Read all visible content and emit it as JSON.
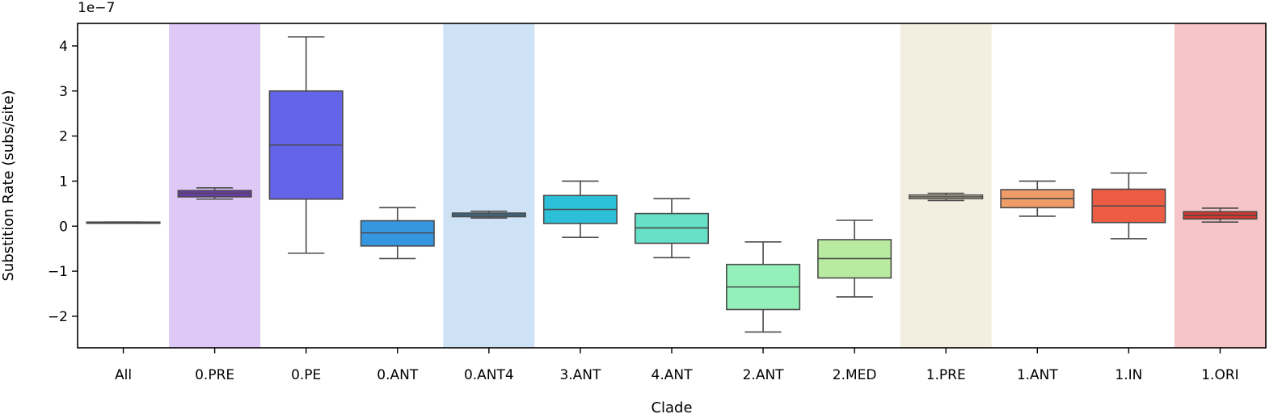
{
  "chart_data": {
    "type": "box",
    "xlabel": "Clade",
    "ylabel": "Substition Rate (subs/site)",
    "offset_text": "1e−7",
    "y_scale_factor": 1e-07,
    "ylim": [
      -2.7,
      4.5
    ],
    "yticks": [
      -2,
      -1,
      0,
      1,
      2,
      3,
      4
    ],
    "ytick_labels": [
      "−2",
      "−1",
      "0",
      "1",
      "2",
      "3",
      "4"
    ],
    "grid": false,
    "legend": "none",
    "categories": [
      "All",
      "0.PRE",
      "0.PE",
      "0.ANT",
      "0.ANT4",
      "3.ANT",
      "4.ANT",
      "2.ANT",
      "2.MED",
      "1.PRE",
      "1.ANT",
      "1.IN",
      "1.ORI"
    ],
    "boxes": [
      {
        "category": "All",
        "whisker_low": 0.07,
        "q1": 0.07,
        "median": 0.08,
        "q3": 0.09,
        "whisker_high": 0.09,
        "color": "#5a2a82"
      },
      {
        "category": "0.PRE",
        "whisker_low": 0.6,
        "q1": 0.65,
        "median": 0.73,
        "q3": 0.79,
        "whisker_high": 0.85,
        "color": "#6a3aab"
      },
      {
        "category": "0.PE",
        "whisker_low": -0.6,
        "q1": 0.6,
        "median": 1.8,
        "q3": 3.0,
        "whisker_high": 4.2,
        "color": "#6464e8"
      },
      {
        "category": "0.ANT",
        "whisker_low": -0.72,
        "q1": -0.44,
        "median": -0.15,
        "q3": 0.12,
        "whisker_high": 0.41,
        "color": "#3796e0"
      },
      {
        "category": "0.ANT4",
        "whisker_low": 0.18,
        "q1": 0.21,
        "median": 0.25,
        "q3": 0.29,
        "whisker_high": 0.33,
        "color": "#2f8fc8"
      },
      {
        "category": "3.ANT",
        "whisker_low": -0.25,
        "q1": 0.06,
        "median": 0.37,
        "q3": 0.68,
        "whisker_high": 1.0,
        "color": "#2bc0d8"
      },
      {
        "category": "4.ANT",
        "whisker_low": -0.7,
        "q1": -0.38,
        "median": -0.04,
        "q3": 0.28,
        "whisker_high": 0.61,
        "color": "#67e0c8"
      },
      {
        "category": "2.ANT",
        "whisker_low": -2.35,
        "q1": -1.85,
        "median": -1.35,
        "q3": -0.85,
        "whisker_high": -0.35,
        "color": "#92f0b8"
      },
      {
        "category": "2.MED",
        "whisker_low": -1.57,
        "q1": -1.15,
        "median": -0.72,
        "q3": -0.3,
        "whisker_high": 0.13,
        "color": "#b8eaa0"
      },
      {
        "category": "1.PRE",
        "whisker_low": 0.57,
        "q1": 0.61,
        "median": 0.65,
        "q3": 0.69,
        "whisker_high": 0.73,
        "color": "#f4e8c4"
      },
      {
        "category": "1.ANT",
        "whisker_low": 0.22,
        "q1": 0.41,
        "median": 0.61,
        "q3": 0.81,
        "whisker_high": 1.0,
        "color": "#f09c68"
      },
      {
        "category": "1.IN",
        "whisker_low": -0.28,
        "q1": 0.08,
        "median": 0.45,
        "q3": 0.82,
        "whisker_high": 1.18,
        "color": "#ec5c44"
      },
      {
        "category": "1.ORI",
        "whisker_low": 0.09,
        "q1": 0.16,
        "median": 0.24,
        "q3": 0.32,
        "whisker_high": 0.4,
        "color": "#d8352c"
      }
    ],
    "highlight_bands": [
      {
        "category": "0.PRE",
        "color": "#dec8f5"
      },
      {
        "category": "0.ANT4",
        "color": "#cde3f5"
      },
      {
        "category": "1.PRE",
        "color": "#f2efe0"
      },
      {
        "category": "1.ORI",
        "color": "#f5c5c8"
      }
    ]
  }
}
